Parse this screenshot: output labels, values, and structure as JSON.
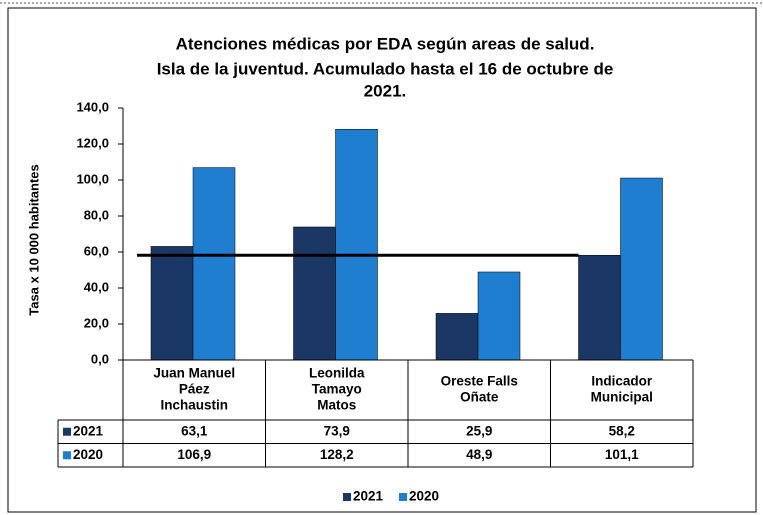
{
  "chart_data": {
    "type": "bar",
    "title": [
      "Atenciones médicas por EDA según areas de salud.",
      "Isla de la juventud. Acumulado hasta el 16 de octubre de",
      "2021."
    ],
    "y_label": "Tasa x 10 000 habitantes",
    "categories": [
      [
        "Juan Manuel",
        "Páez",
        "Inchaustin"
      ],
      [
        "Leonilda",
        "Tamayo",
        "Matos"
      ],
      [
        "Oreste Falls",
        "Oñate"
      ],
      [
        "Indicador",
        "Municipal"
      ]
    ],
    "series": [
      {
        "name": "2021",
        "color": "#1b3766",
        "values": [
          63.1,
          73.9,
          25.9,
          58.2
        ],
        "value_labels": [
          "63,1",
          "73,9",
          "25,9",
          "58,2"
        ]
      },
      {
        "name": "2020",
        "color": "#1f7ed0",
        "values": [
          106.9,
          128.2,
          48.9,
          101.1
        ],
        "value_labels": [
          "106,9",
          "128,2",
          "48,9",
          "101,1"
        ]
      }
    ],
    "ylim": [
      0,
      140
    ],
    "yticks": [
      {
        "value": 0,
        "label": "0,0"
      },
      {
        "value": 20,
        "label": "20,0"
      },
      {
        "value": 40,
        "label": "40,0"
      },
      {
        "value": 60,
        "label": "60,0"
      },
      {
        "value": 80,
        "label": "80,0"
      },
      {
        "value": 100,
        "label": "100,0"
      },
      {
        "value": 120,
        "label": "120,0"
      },
      {
        "value": 140,
        "label": "140,0"
      }
    ],
    "reference_line": {
      "series": 0,
      "index": 3,
      "color": "#000000"
    }
  }
}
